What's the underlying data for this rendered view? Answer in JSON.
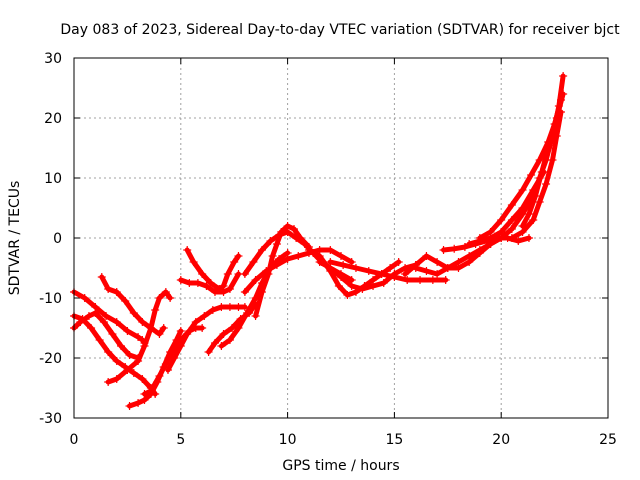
{
  "chart_data": {
    "type": "scatter",
    "title": "Day 083 of 2023, Sidereal Day-to-day VTEC variation (SDTVAR) for receiver bjct",
    "xlabel": "GPS time / hours",
    "ylabel": "SDTVAR / TECUs",
    "xlim": [
      0,
      25
    ],
    "ylim": [
      -30,
      30
    ],
    "xticks": [
      0,
      5,
      10,
      15,
      20,
      25
    ],
    "yticks": [
      -30,
      -20,
      -10,
      0,
      10,
      20,
      30
    ],
    "grid": true,
    "marker_color": "#ff0000",
    "series": [
      {
        "x": [
          0.0,
          0.3,
          0.7,
          1.0,
          1.4,
          1.8,
          2.2,
          2.6,
          3.0
        ],
        "y": [
          -15,
          -14,
          -13,
          -12.5,
          -14,
          -16,
          -18,
          -19.5,
          -20
        ]
      },
      {
        "x": [
          0.0,
          0.5,
          1.0,
          1.5,
          2.0,
          2.5,
          3.0,
          3.2,
          3.3
        ],
        "y": [
          -9,
          -10,
          -11.5,
          -13,
          -14,
          -15.5,
          -16.5,
          -17,
          -17.5
        ]
      },
      {
        "x": [
          0.0,
          0.4,
          0.8,
          1.2,
          1.6,
          2.0,
          2.4,
          2.8,
          3.2,
          3.6,
          3.8
        ],
        "y": [
          -13,
          -13.5,
          -15,
          -17,
          -19,
          -20.5,
          -21.5,
          -22.5,
          -23.5,
          -25,
          -26
        ]
      },
      {
        "x": [
          1.3,
          1.6,
          2.0,
          2.4,
          2.8,
          3.2,
          3.6,
          4.0,
          4.2
        ],
        "y": [
          -6.5,
          -8.5,
          -9,
          -10.5,
          -12.5,
          -14,
          -15,
          -16,
          -15
        ]
      },
      {
        "x": [
          1.6,
          2.0,
          2.5,
          3.0,
          3.3,
          3.6,
          3.8,
          4.0,
          4.3,
          4.5
        ],
        "y": [
          -24,
          -23.5,
          -22,
          -20.5,
          -18,
          -15,
          -12,
          -10,
          -9,
          -10
        ]
      },
      {
        "x": [
          2.6,
          3.0,
          3.3,
          3.6,
          3.9,
          4.2,
          4.5,
          4.8,
          5.0
        ],
        "y": [
          -28,
          -27.5,
          -27,
          -26,
          -24,
          -21.5,
          -19,
          -17,
          -15.5
        ]
      },
      {
        "x": [
          3.3,
          3.6,
          4.0,
          4.3,
          4.6,
          5.0,
          5.4,
          5.7,
          6.0
        ],
        "y": [
          -26,
          -25.5,
          -23,
          -21,
          -19,
          -17,
          -15.5,
          -15,
          -15
        ]
      },
      {
        "x": [
          4.4,
          4.7,
          5.0,
          5.3,
          5.7,
          6.1,
          6.5,
          6.9,
          7.3,
          7.7,
          8.0
        ],
        "y": [
          -22,
          -20,
          -18,
          -16,
          -14,
          -13,
          -12,
          -11.5,
          -11.5,
          -11.5,
          -11.5
        ]
      },
      {
        "x": [
          5.0,
          5.4,
          5.8,
          6.2,
          6.6,
          7.0,
          7.3,
          7.7
        ],
        "y": [
          -7,
          -7.5,
          -7.5,
          -8,
          -9,
          -9,
          -8.5,
          -6
        ]
      },
      {
        "x": [
          5.3,
          5.6,
          6.0,
          6.4,
          6.8,
          7.0,
          7.2,
          7.5,
          7.7
        ],
        "y": [
          -2,
          -4,
          -6,
          -7.5,
          -8.5,
          -8,
          -6,
          -4,
          -3
        ]
      },
      {
        "x": [
          6.3,
          6.6,
          7.0,
          7.4,
          7.8,
          8.2,
          8.5
        ],
        "y": [
          -19,
          -17.5,
          -16,
          -15,
          -13.5,
          -12.5,
          -11
        ]
      },
      {
        "x": [
          6.9,
          7.3,
          7.7,
          8.1,
          8.5,
          8.8,
          9.2,
          9.6,
          10.0
        ],
        "y": [
          -18,
          -17,
          -15,
          -12.5,
          -10,
          -7.5,
          -5,
          -3.5,
          -2.5
        ]
      },
      {
        "x": [
          8.5,
          8.8,
          9.1,
          9.3,
          9.5,
          9.7,
          10.0,
          10.3,
          10.6,
          11.0
        ],
        "y": [
          -13,
          -9,
          -6,
          -3,
          -1,
          1,
          2,
          1.5,
          0,
          -1.5
        ]
      },
      {
        "x": [
          8.0,
          8.4,
          8.8,
          9.2,
          9.6,
          10.0,
          10.4,
          10.8,
          11.2,
          11.6,
          12.0,
          12.5,
          13.0
        ],
        "y": [
          -6,
          -4,
          -2,
          -0.5,
          0.5,
          1,
          0,
          -1,
          -2.5,
          -4,
          -5,
          -6,
          -7
        ]
      },
      {
        "x": [
          8.0,
          8.5,
          9.0,
          9.5,
          10.0,
          10.5,
          11.0,
          11.5,
          12.0,
          12.5,
          13.0
        ],
        "y": [
          -9,
          -7,
          -5.5,
          -4.5,
          -3.5,
          -3,
          -2.5,
          -2,
          -2,
          -3,
          -4
        ]
      },
      {
        "x": [
          11.0,
          11.5,
          12.0,
          12.4,
          12.8,
          13.2,
          13.6,
          14.0,
          14.4,
          14.8,
          15.2
        ],
        "y": [
          -2,
          -3,
          -5.5,
          -8,
          -9.5,
          -9,
          -8,
          -7,
          -6,
          -5,
          -4
        ]
      },
      {
        "x": [
          11.5,
          12.0,
          12.5,
          13.0,
          13.5,
          14.0,
          14.5,
          15.0,
          15.5,
          16.0
        ],
        "y": [
          -4,
          -5,
          -6.5,
          -8,
          -8.5,
          -8,
          -7.5,
          -6,
          -5,
          -4.5
        ]
      },
      {
        "x": [
          12.0,
          12.6,
          13.2,
          13.8,
          14.4,
          15.0,
          15.6,
          16.2,
          16.8,
          17.4
        ],
        "y": [
          -4,
          -4.5,
          -5,
          -5.5,
          -6,
          -6.5,
          -7,
          -7,
          -7,
          -7
        ]
      },
      {
        "x": [
          15.5,
          16.0,
          16.5,
          17.0,
          17.5,
          18.0,
          18.5,
          19.0,
          19.5
        ],
        "y": [
          -6,
          -4.5,
          -3,
          -4,
          -5,
          -5,
          -4,
          -2.5,
          -1
        ]
      },
      {
        "x": [
          16.0,
          16.5,
          17.0,
          17.5,
          18.0,
          18.5,
          19.0,
          19.5,
          20.0
        ],
        "y": [
          -5,
          -5.5,
          -6,
          -5,
          -4,
          -3,
          -2,
          -1,
          0
        ]
      },
      {
        "x": [
          17.3,
          17.8,
          18.3,
          18.8,
          19.3,
          19.8,
          20.3,
          20.8,
          21.3
        ],
        "y": [
          -2,
          -1.8,
          -1.5,
          -1,
          -0.5,
          0,
          0,
          -0.5,
          0
        ]
      },
      {
        "x": [
          18.5,
          19.0,
          19.5,
          20.0,
          20.5,
          21.0,
          21.5,
          22.0
        ],
        "y": [
          -1,
          -0.5,
          0,
          1,
          3,
          5,
          8,
          11
        ]
      },
      {
        "x": [
          19.0,
          19.5,
          20.0,
          20.5,
          21.0,
          21.4,
          21.8,
          22.2,
          22.6,
          22.9
        ],
        "y": [
          0,
          1,
          3,
          5.5,
          8,
          10.5,
          13,
          16,
          20,
          24
        ]
      },
      {
        "x": [
          19.5,
          20.0,
          20.5,
          21.0,
          21.5,
          21.8,
          22.1,
          22.4,
          22.7,
          22.9
        ],
        "y": [
          -1,
          0,
          1.5,
          4,
          7,
          10,
          13,
          17,
          22,
          27
        ]
      },
      {
        "x": [
          20.5,
          21.0,
          21.5,
          21.8,
          22.1,
          22.4,
          22.6,
          22.8
        ],
        "y": [
          0,
          1,
          3,
          6,
          9,
          13,
          17,
          21
        ]
      },
      {
        "x": [
          21.0,
          21.3,
          21.6,
          21.9,
          22.2,
          22.5,
          22.8
        ],
        "y": [
          2,
          4,
          7,
          11,
          15,
          19,
          23
        ]
      }
    ]
  }
}
